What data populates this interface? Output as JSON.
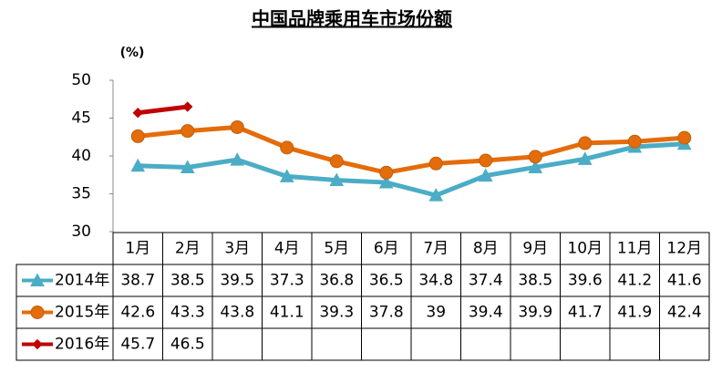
{
  "chart_data": {
    "type": "line",
    "title": "中国品牌乘用车市场份额",
    "y_label": "(%)",
    "categories": [
      "1月",
      "2月",
      "3月",
      "4月",
      "5月",
      "6月",
      "7月",
      "8月",
      "9月",
      "10月",
      "11月",
      "12月"
    ],
    "series": [
      {
        "name": "2014年",
        "color": "#4bacc6",
        "marker": "triangle",
        "values": [
          38.7,
          38.5,
          39.5,
          37.3,
          36.8,
          36.5,
          34.8,
          37.4,
          38.5,
          39.6,
          41.2,
          41.6
        ]
      },
      {
        "name": "2015年",
        "color": "#e46c0a",
        "marker": "circle",
        "values": [
          42.6,
          43.3,
          43.8,
          41.1,
          39.3,
          37.8,
          39,
          39.4,
          39.9,
          41.7,
          41.9,
          42.4
        ]
      },
      {
        "name": "2016年",
        "color": "#c00000",
        "marker": "diamond",
        "values": [
          45.7,
          46.5,
          null,
          null,
          null,
          null,
          null,
          null,
          null,
          null,
          null,
          null
        ]
      }
    ],
    "ylim": [
      30,
      50
    ],
    "yticks": [
      30,
      35,
      40,
      45,
      50
    ],
    "grid": false
  }
}
